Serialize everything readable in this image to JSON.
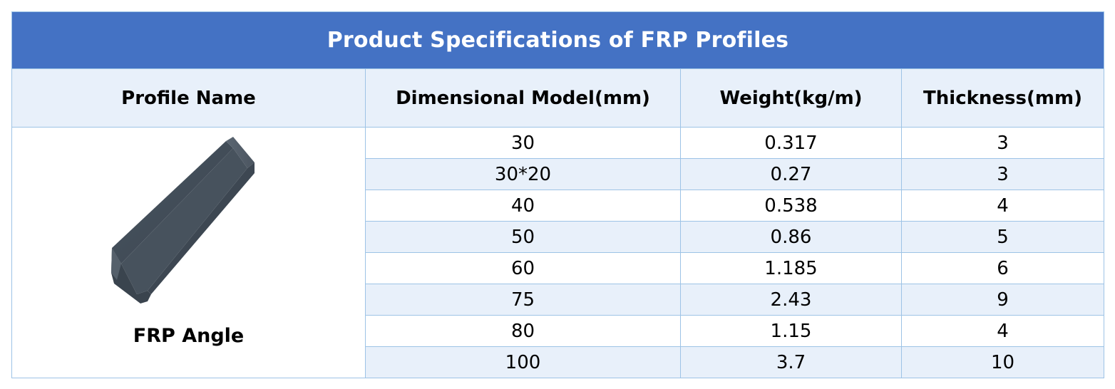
{
  "table": {
    "title": "Product Specifications of FRP Profiles",
    "headers": [
      "Profile Name",
      "Dimensional Model(mm)",
      "Weight(kg/m)",
      "Thickness(mm)"
    ],
    "profile": {
      "name": "FRP Angle",
      "image_icon": "frp-angle-profile-icon"
    },
    "rows": [
      {
        "model": "30",
        "weight": "0.317",
        "thickness": "3"
      },
      {
        "model": "30*20",
        "weight": "0.27",
        "thickness": "3"
      },
      {
        "model": "40",
        "weight": "0.538",
        "thickness": "4"
      },
      {
        "model": "50",
        "weight": "0.86",
        "thickness": "5"
      },
      {
        "model": "60",
        "weight": "1.185",
        "thickness": "6"
      },
      {
        "model": "75",
        "weight": "2.43",
        "thickness": "9"
      },
      {
        "model": "80",
        "weight": "1.15",
        "thickness": "4"
      },
      {
        "model": "100",
        "weight": "3.7",
        "thickness": "10"
      }
    ],
    "colors": {
      "title_bg": "#4472c4",
      "header_bg": "#e8f0fa",
      "border": "#9dc3e6",
      "alt_row_bg": "#e8f0fa"
    }
  }
}
